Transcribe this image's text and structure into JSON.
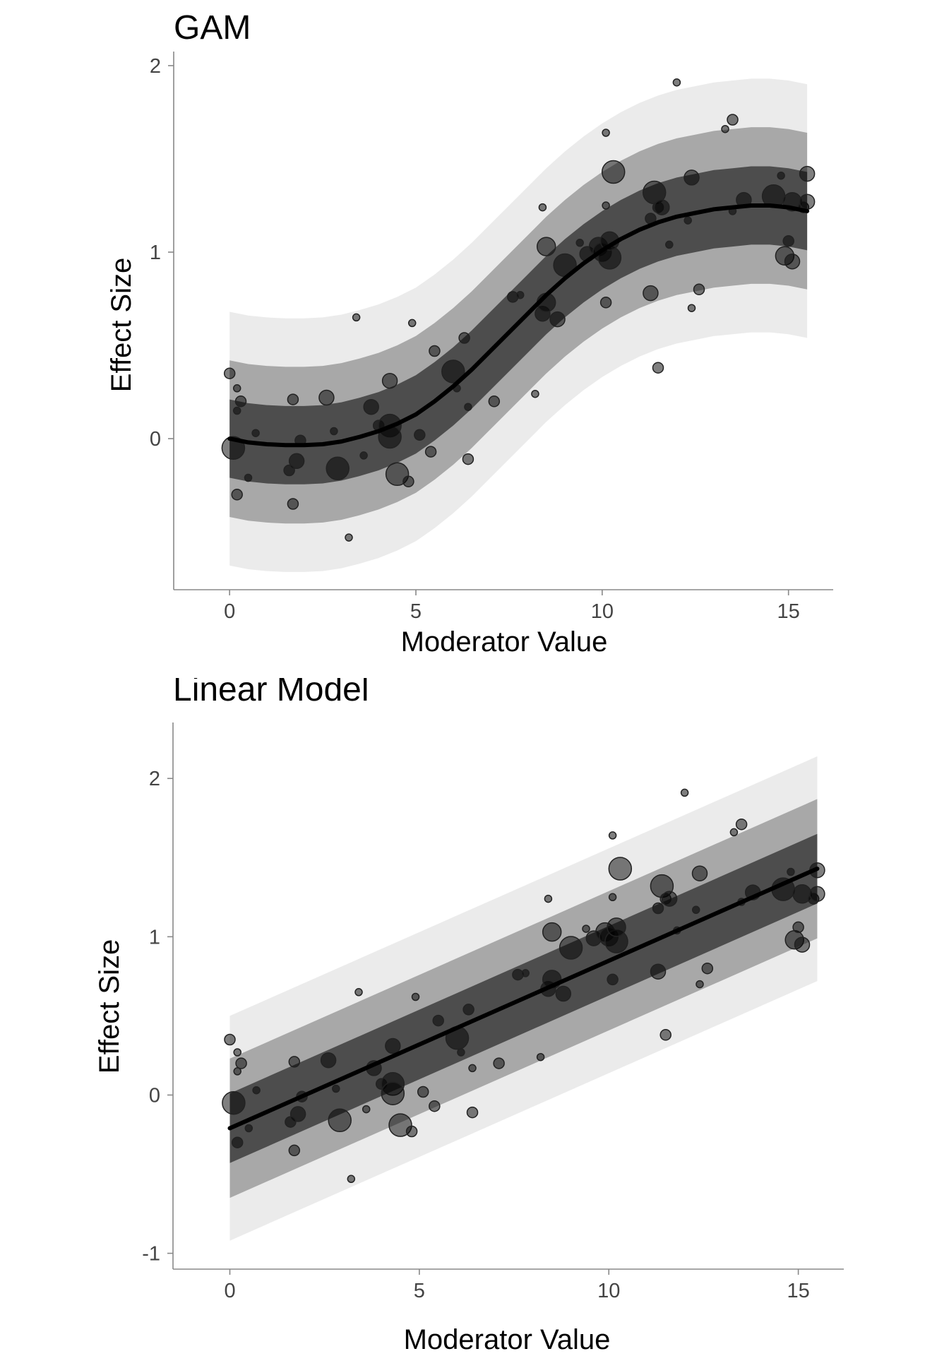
{
  "chart_data": [
    {
      "type": "scatter",
      "title": "GAM",
      "xlabel": "Moderator Value",
      "ylabel": "Effect Size",
      "xlim": [
        -1.5,
        16.2
      ],
      "ylim": [
        -0.81,
        2.03
      ],
      "xticks": [
        0,
        5,
        10,
        15
      ],
      "xtick_labels": [
        "0",
        "5",
        "10",
        "15"
      ],
      "yticks": [
        0,
        1,
        2
      ],
      "ytick_labels": [
        "0",
        "1",
        "2"
      ],
      "grid": false,
      "fit": {
        "x": [
          0,
          0.5,
          1,
          1.5,
          2,
          2.5,
          3,
          3.5,
          4,
          4.5,
          5,
          5.5,
          6,
          6.5,
          7,
          7.5,
          8,
          8.5,
          9,
          9.5,
          10,
          10.5,
          11,
          11.5,
          12,
          12.5,
          13,
          13.5,
          14,
          14.5,
          15,
          15.5
        ],
        "y": [
          0.0,
          -0.02,
          -0.03,
          -0.035,
          -0.035,
          -0.03,
          -0.015,
          0.01,
          0.04,
          0.08,
          0.13,
          0.2,
          0.28,
          0.37,
          0.47,
          0.57,
          0.67,
          0.77,
          0.86,
          0.94,
          1.01,
          1.07,
          1.12,
          1.16,
          1.19,
          1.21,
          1.23,
          1.24,
          1.25,
          1.25,
          1.24,
          1.22
        ]
      },
      "bands": [
        {
          "name": "outer",
          "halfwidth": 0.68
        },
        {
          "name": "middle",
          "halfwidth": 0.42
        },
        {
          "name": "inner",
          "halfwidth": 0.21
        }
      ],
      "band_colors": [
        "#ebebeb",
        "#a8a8a8",
        "#4d4d4d"
      ],
      "line_color": "#000000"
    },
    {
      "type": "scatter",
      "title": "Linear Model",
      "xlabel": "Moderator Value",
      "ylabel": "Effect Size",
      "xlim": [
        -1.5,
        16.2
      ],
      "ylim": [
        -1.1,
        2.3
      ],
      "xticks": [
        0,
        5,
        10,
        15
      ],
      "xtick_labels": [
        "0",
        "5",
        "10",
        "15"
      ],
      "yticks": [
        -1,
        0,
        1,
        2
      ],
      "ytick_labels": [
        "-1",
        "0",
        "1",
        "2"
      ],
      "grid": false,
      "fit": {
        "x": [
          0,
          15.5
        ],
        "y": [
          -0.21,
          1.43
        ]
      },
      "bands": [
        {
          "name": "outer",
          "halfwidth": 0.71
        },
        {
          "name": "middle",
          "halfwidth": 0.44
        },
        {
          "name": "inner",
          "halfwidth": 0.22
        }
      ],
      "band_colors": [
        "#ebebeb",
        "#a8a8a8",
        "#4d4d4d"
      ],
      "line_color": "#000000"
    }
  ],
  "points": [
    {
      "x": 0.0,
      "y": 0.35,
      "s": 2
    },
    {
      "x": 0.2,
      "y": 0.27,
      "s": 1
    },
    {
      "x": 0.3,
      "y": 0.2,
      "s": 2
    },
    {
      "x": 0.2,
      "y": 0.15,
      "s": 1
    },
    {
      "x": 0.1,
      "y": -0.05,
      "s": 5
    },
    {
      "x": 0.2,
      "y": -0.3,
      "s": 2
    },
    {
      "x": 0.5,
      "y": -0.21,
      "s": 1
    },
    {
      "x": 0.7,
      "y": 0.03,
      "s": 1
    },
    {
      "x": 1.7,
      "y": 0.21,
      "s": 2
    },
    {
      "x": 1.9,
      "y": -0.01,
      "s": 2
    },
    {
      "x": 1.8,
      "y": -0.12,
      "s": 3
    },
    {
      "x": 1.6,
      "y": -0.17,
      "s": 2
    },
    {
      "x": 1.7,
      "y": -0.35,
      "s": 2
    },
    {
      "x": 2.6,
      "y": 0.22,
      "s": 3
    },
    {
      "x": 2.8,
      "y": 0.04,
      "s": 1
    },
    {
      "x": 2.9,
      "y": -0.16,
      "s": 5
    },
    {
      "x": 3.2,
      "y": -0.53,
      "s": 1
    },
    {
      "x": 3.4,
      "y": 0.65,
      "s": 1
    },
    {
      "x": 3.6,
      "y": -0.09,
      "s": 1
    },
    {
      "x": 3.8,
      "y": 0.17,
      "s": 3
    },
    {
      "x": 4.0,
      "y": 0.07,
      "s": 2
    },
    {
      "x": 4.3,
      "y": 0.31,
      "s": 3
    },
    {
      "x": 4.3,
      "y": 0.07,
      "s": 5
    },
    {
      "x": 4.3,
      "y": 0.01,
      "s": 5
    },
    {
      "x": 4.5,
      "y": -0.19,
      "s": 5
    },
    {
      "x": 4.8,
      "y": -0.23,
      "s": 2
    },
    {
      "x": 4.9,
      "y": 0.62,
      "s": 1
    },
    {
      "x": 5.1,
      "y": 0.02,
      "s": 2
    },
    {
      "x": 5.4,
      "y": -0.07,
      "s": 2
    },
    {
      "x": 5.5,
      "y": 0.47,
      "s": 2
    },
    {
      "x": 6.0,
      "y": 0.36,
      "s": 5
    },
    {
      "x": 6.1,
      "y": 0.27,
      "s": 1
    },
    {
      "x": 6.3,
      "y": 0.54,
      "s": 2
    },
    {
      "x": 6.4,
      "y": 0.17,
      "s": 1
    },
    {
      "x": 6.4,
      "y": -0.11,
      "s": 2
    },
    {
      "x": 7.1,
      "y": 0.2,
      "s": 2
    },
    {
      "x": 7.6,
      "y": 0.76,
      "s": 2
    },
    {
      "x": 7.8,
      "y": 0.77,
      "s": 1
    },
    {
      "x": 8.2,
      "y": 0.24,
      "s": 1
    },
    {
      "x": 8.4,
      "y": 1.24,
      "s": 1
    },
    {
      "x": 8.4,
      "y": 0.67,
      "s": 3
    },
    {
      "x": 8.5,
      "y": 1.03,
      "s": 4
    },
    {
      "x": 8.5,
      "y": 0.73,
      "s": 4
    },
    {
      "x": 8.8,
      "y": 0.64,
      "s": 3
    },
    {
      "x": 9.0,
      "y": 0.93,
      "s": 5
    },
    {
      "x": 9.4,
      "y": 1.05,
      "s": 1
    },
    {
      "x": 9.6,
      "y": 0.99,
      "s": 3
    },
    {
      "x": 9.9,
      "y": 1.03,
      "s": 4
    },
    {
      "x": 10.0,
      "y": 1.0,
      "s": 4
    },
    {
      "x": 10.1,
      "y": 1.64,
      "s": 1
    },
    {
      "x": 10.1,
      "y": 1.25,
      "s": 1
    },
    {
      "x": 10.1,
      "y": 0.73,
      "s": 2
    },
    {
      "x": 10.2,
      "y": 0.97,
      "s": 5
    },
    {
      "x": 10.2,
      "y": 1.06,
      "s": 4
    },
    {
      "x": 10.3,
      "y": 1.43,
      "s": 5
    },
    {
      "x": 11.3,
      "y": 1.18,
      "s": 2
    },
    {
      "x": 11.3,
      "y": 0.78,
      "s": 3
    },
    {
      "x": 11.4,
      "y": 1.32,
      "s": 5
    },
    {
      "x": 11.5,
      "y": 1.24,
      "s": 2
    },
    {
      "x": 11.5,
      "y": 0.38,
      "s": 2
    },
    {
      "x": 11.6,
      "y": 1.24,
      "s": 3
    },
    {
      "x": 11.8,
      "y": 1.04,
      "s": 1
    },
    {
      "x": 12.0,
      "y": 1.91,
      "s": 1
    },
    {
      "x": 12.3,
      "y": 1.17,
      "s": 1
    },
    {
      "x": 12.4,
      "y": 1.4,
      "s": 3
    },
    {
      "x": 12.4,
      "y": 0.7,
      "s": 1
    },
    {
      "x": 12.6,
      "y": 0.8,
      "s": 2
    },
    {
      "x": 13.3,
      "y": 1.66,
      "s": 1
    },
    {
      "x": 13.5,
      "y": 1.71,
      "s": 2
    },
    {
      "x": 13.5,
      "y": 1.22,
      "s": 1
    },
    {
      "x": 13.8,
      "y": 1.28,
      "s": 3
    },
    {
      "x": 14.6,
      "y": 1.3,
      "s": 5
    },
    {
      "x": 14.8,
      "y": 1.41,
      "s": 1
    },
    {
      "x": 14.9,
      "y": 0.98,
      "s": 4
    },
    {
      "x": 15.0,
      "y": 1.06,
      "s": 2
    },
    {
      "x": 15.1,
      "y": 1.27,
      "s": 4
    },
    {
      "x": 15.1,
      "y": 0.95,
      "s": 3
    },
    {
      "x": 15.4,
      "y": 1.24,
      "s": 2
    },
    {
      "x": 15.5,
      "y": 1.42,
      "s": 3
    },
    {
      "x": 15.5,
      "y": 1.27,
      "s": 3
    }
  ],
  "size_radius_map": {
    "1": 5,
    "2": 7.5,
    "3": 10.5,
    "4": 13,
    "5": 16
  }
}
